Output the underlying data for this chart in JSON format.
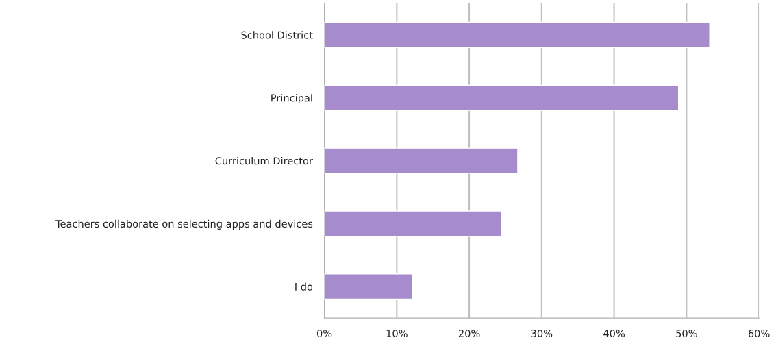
{
  "chart_data": {
    "type": "bar",
    "orientation": "horizontal",
    "categories": [
      "School District",
      "Principal",
      "Curriculum Director",
      "Teachers collaborate on selecting apps and devices",
      "I do"
    ],
    "values": [
      53.2,
      48.9,
      26.7,
      24.5,
      12.2
    ],
    "color": "#a78ccd",
    "xlim": [
      0,
      60
    ],
    "xticks": [
      {
        "value": 0,
        "label": "0%"
      },
      {
        "value": 10,
        "label": "10%"
      },
      {
        "value": 20,
        "label": "20%"
      },
      {
        "value": 30,
        "label": "30%"
      },
      {
        "value": 40,
        "label": "40%"
      },
      {
        "value": 50,
        "label": "50%"
      },
      {
        "value": 60,
        "label": "60%"
      }
    ],
    "grid": "x"
  }
}
